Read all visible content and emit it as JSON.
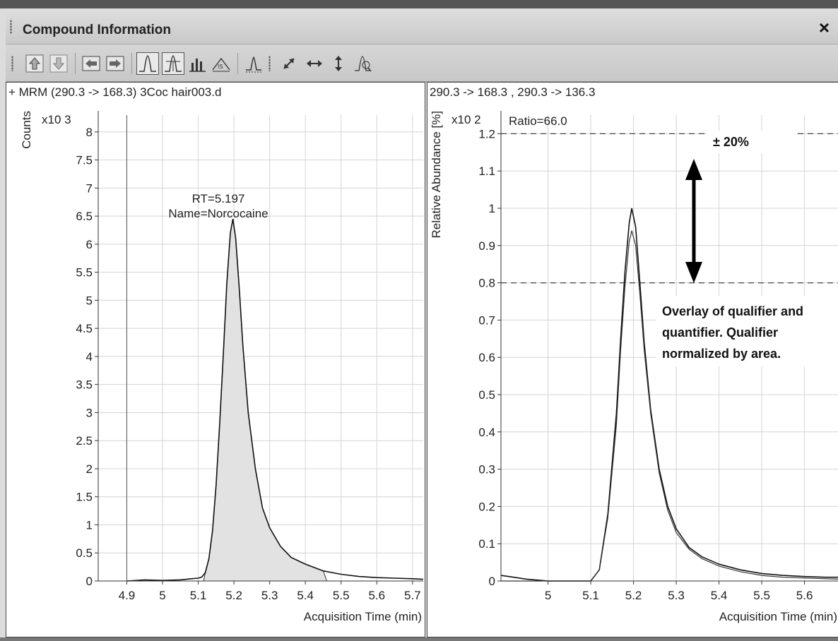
{
  "window": {
    "title": "Compound Information",
    "close_label": "×"
  },
  "toolbar": {
    "buttons": [
      {
        "icon": "arrow-up-icon"
      },
      {
        "icon": "arrow-down-icon"
      },
      {
        "icon": "arrow-left-icon"
      },
      {
        "icon": "arrow-right-icon"
      },
      {
        "icon": "peak-icon"
      },
      {
        "icon": "peak-integration-icon"
      },
      {
        "icon": "bar-spectrum-icon"
      },
      {
        "icon": "istd-icon"
      },
      {
        "icon": "peak-baseline-icon"
      },
      {
        "icon": "autoscale-xy-icon"
      },
      {
        "icon": "autoscale-x-icon"
      },
      {
        "icon": "autoscale-y-icon"
      },
      {
        "icon": "peak-zoom-icon"
      }
    ]
  },
  "left_pane": {
    "header": "+ MRM (290.3 -> 168.3) 3Coc hair003.d",
    "peak_rt": "RT=5.197",
    "peak_name": "Name=Norcocaine"
  },
  "right_pane": {
    "header": "290.3 -> 168.3  , 290.3 -> 136.3",
    "ratio": "Ratio=66.0",
    "tolerance": "± 20%",
    "note_lines": [
      "Overlay of qualifier and",
      "quantifier. Qualifier",
      "normalized by area."
    ]
  },
  "chart_data": [
    {
      "type": "line",
      "title": "+ MRM (290.3 -> 168.3) 3Coc hair003.d",
      "xlabel": "Acquisition Time (min)",
      "ylabel": "Counts",
      "yunit": "x10 3",
      "xlim": [
        4.82,
        5.73
      ],
      "ylim": [
        0,
        8.3
      ],
      "xticks": [
        4.9,
        5,
        5.1,
        5.2,
        5.3,
        5.4,
        5.5,
        5.6,
        5.7
      ],
      "yticks": [
        0,
        0.5,
        1,
        1.5,
        2,
        2.5,
        3,
        3.5,
        4,
        4.5,
        5,
        5.5,
        6,
        6.5,
        7,
        7.5,
        8
      ],
      "grid": true,
      "cursor_x": 4.9,
      "integrated_region": [
        5.115,
        5.46
      ],
      "annotations": [
        "RT=5.197",
        "Name=Norcocaine"
      ],
      "series": [
        {
          "x": [
            4.9,
            4.95,
            5.0,
            5.05,
            5.08,
            5.1,
            5.11,
            5.12,
            5.13,
            5.14,
            5.15,
            5.16,
            5.17,
            5.18,
            5.19,
            5.197,
            5.205,
            5.215,
            5.225,
            5.24,
            5.26,
            5.28,
            5.3,
            5.33,
            5.36,
            5.4,
            5.45,
            5.5,
            5.55,
            5.6,
            5.65,
            5.7,
            5.73
          ],
          "values": [
            0.0,
            0.02,
            0.01,
            0.02,
            0.04,
            0.05,
            0.07,
            0.15,
            0.4,
            0.9,
            1.7,
            2.8,
            4.0,
            5.3,
            6.2,
            6.45,
            6.1,
            5.2,
            4.2,
            3.0,
            2.0,
            1.3,
            0.95,
            0.62,
            0.42,
            0.3,
            0.18,
            0.12,
            0.08,
            0.06,
            0.05,
            0.04,
            0.03
          ]
        }
      ]
    },
    {
      "type": "line",
      "title": "290.3 -> 168.3  , 290.3 -> 136.3",
      "xlabel": "Acquisition Time (min)",
      "ylabel": "Relative Abundance [%]",
      "yunit": "x10 2",
      "xlim": [
        4.89,
        5.68
      ],
      "ylim": [
        0,
        1.25
      ],
      "xticks": [
        5,
        5.1,
        5.2,
        5.3,
        5.4,
        5.5,
        5.6
      ],
      "yticks": [
        0,
        0.1,
        0.2,
        0.3,
        0.4,
        0.5,
        0.6,
        0.7,
        0.8,
        0.9,
        1,
        1.1,
        1.2
      ],
      "grid": true,
      "tolerance_band": [
        0.8,
        1.2
      ],
      "annotations": [
        "Ratio=66.0",
        "± 20%",
        "Overlay of qualifier and quantifier. Qualifier normalized by area."
      ],
      "series": [
        {
          "x": [
            4.89,
            4.92,
            4.95,
            5.0,
            5.05,
            5.1,
            5.12,
            5.14,
            5.16,
            5.17,
            5.18,
            5.19,
            5.196,
            5.205,
            5.215,
            5.225,
            5.24,
            5.26,
            5.28,
            5.3,
            5.33,
            5.36,
            5.4,
            5.45,
            5.5,
            5.55,
            5.6,
            5.65,
            5.68
          ],
          "values": [
            0.015,
            0.01,
            0.005,
            0.0,
            0.0,
            0.0,
            0.03,
            0.18,
            0.45,
            0.65,
            0.83,
            0.96,
            1.0,
            0.95,
            0.8,
            0.64,
            0.46,
            0.3,
            0.2,
            0.14,
            0.09,
            0.065,
            0.045,
            0.03,
            0.02,
            0.015,
            0.012,
            0.01,
            0.01
          ]
        },
        {
          "x": [
            4.89,
            4.92,
            4.95,
            5.0,
            5.05,
            5.1,
            5.12,
            5.14,
            5.16,
            5.17,
            5.18,
            5.19,
            5.196,
            5.205,
            5.215,
            5.225,
            5.24,
            5.26,
            5.28,
            5.3,
            5.33,
            5.36,
            5.4,
            5.45,
            5.5,
            5.55,
            5.6,
            5.65,
            5.68
          ],
          "values": [
            0.0,
            0.0,
            0.0,
            0.0,
            0.0,
            0.0,
            0.03,
            0.17,
            0.42,
            0.62,
            0.79,
            0.91,
            0.94,
            0.9,
            0.77,
            0.62,
            0.45,
            0.29,
            0.19,
            0.13,
            0.085,
            0.06,
            0.04,
            0.025,
            0.015,
            0.01,
            0.008,
            0.006,
            0.005
          ]
        }
      ]
    }
  ]
}
